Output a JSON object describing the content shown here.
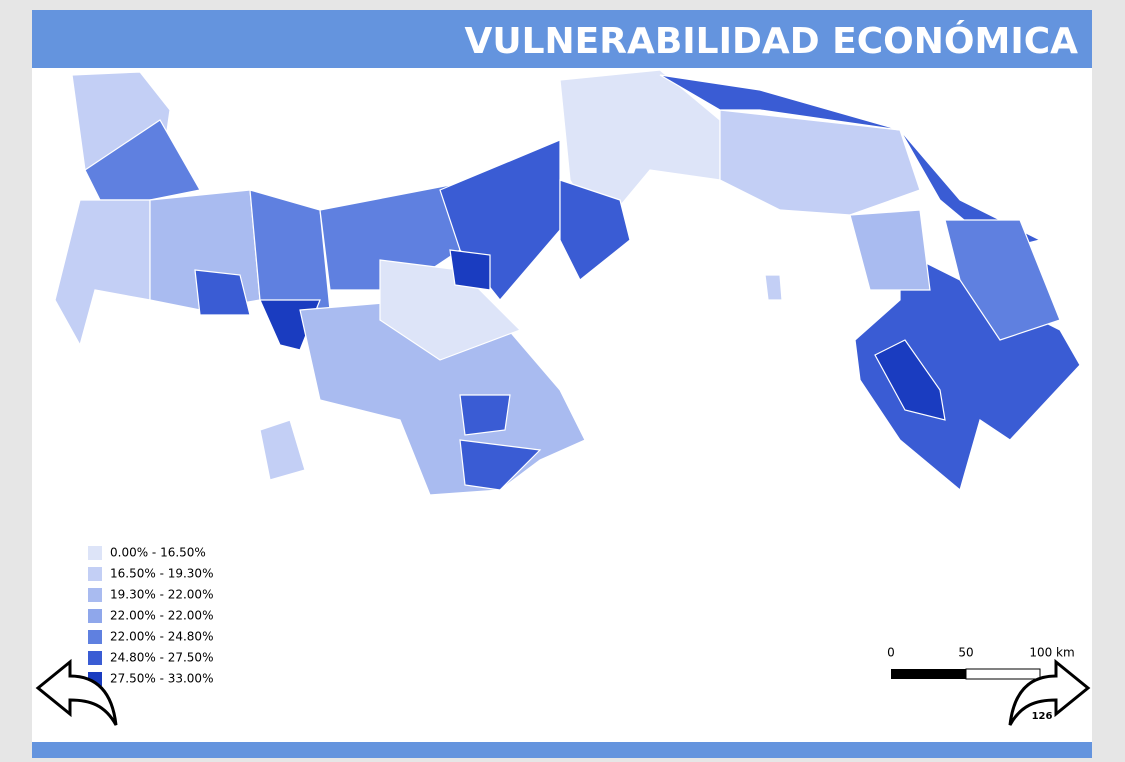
{
  "header": {
    "title": "VULNERABILIDAD ECONÓMICA"
  },
  "legend": {
    "items": [
      {
        "label": "0.00% - 16.50%",
        "color": "#dde4f8"
      },
      {
        "label": "16.50% - 19.30%",
        "color": "#c3cff5"
      },
      {
        "label": "19.30% - 22.00%",
        "color": "#a9bbf0"
      },
      {
        "label": "22.00% - 22.00%",
        "color": "#8fa7eb"
      },
      {
        "label": "22.00% - 24.80%",
        "color": "#5f80e0"
      },
      {
        "label": "24.80% - 27.50%",
        "color": "#3a5cd4"
      },
      {
        "label": "27.50% - 33.00%",
        "color": "#1a3cc0"
      }
    ]
  },
  "scale_bar": {
    "labels": [
      "0",
      "50",
      "100 km"
    ]
  },
  "page_number": "126"
}
